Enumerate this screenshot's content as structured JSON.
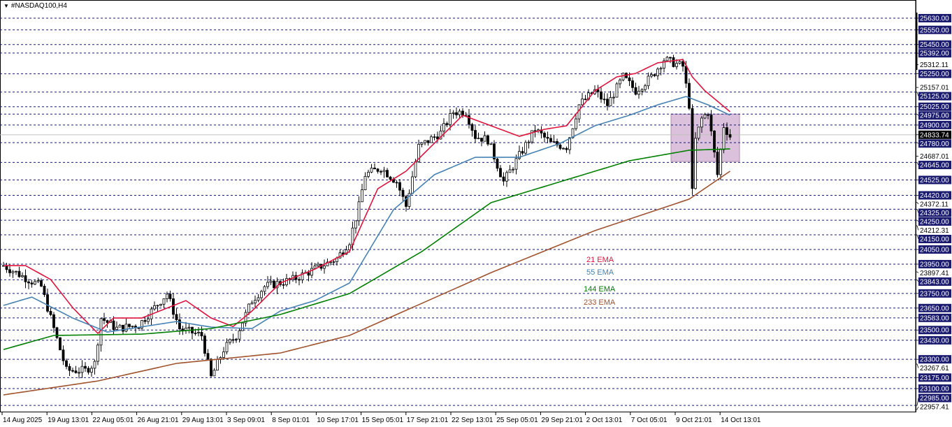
{
  "header": {
    "symbol_timeframe": "#NASDAQ100,H4",
    "menu_icon": "triangle-down-icon"
  },
  "chart_data": {
    "type": "candlestick",
    "title": "#NASDAQ100,H4",
    "ylim": [
      22957.41,
      25630
    ],
    "current_price": "24833.74",
    "price_levels": [
      "25630.00",
      "25550.00",
      "25450.00",
      "25392.00",
      "25250.00",
      "25125.00",
      "25025.00",
      "24975.00",
      "24900.00",
      "24780.00",
      "24645.00",
      "24525.00",
      "24420.00",
      "24325.00",
      "24250.00",
      "24150.00",
      "24050.00",
      "23950.00",
      "23843.00",
      "23750.00",
      "23650.00",
      "23583.00",
      "23500.00",
      "23430.00",
      "23300.00",
      "23175.00",
      "23100.00",
      "22985.00"
    ],
    "axis_labels": [
      "25312.11",
      "25157.01",
      "24687.01",
      "24372.11",
      "24212.31",
      "23897.41",
      "23267.61",
      "22957.41"
    ],
    "time_labels": [
      "14 Aug 2025",
      "19 Aug 13:01",
      "22 Aug 05:01",
      "26 Aug 21:01",
      "29 Aug 13:01",
      "3 Sep 09:01",
      "8 Sep 01:01",
      "10 Sep 17:01",
      "15 Sep 05:01",
      "17 Sep 21:01",
      "22 Sep 13:01",
      "25 Sep 05:01",
      "29 Sep 21:01",
      "2 Oct 13:01",
      "7 Oct 05:01",
      "9 Oct 21:01",
      "14 Oct 13:01"
    ],
    "price_path": [
      [
        0,
        23940
      ],
      [
        6,
        23868
      ],
      [
        12,
        23797
      ],
      [
        16,
        23510
      ],
      [
        20,
        23224
      ],
      [
        26,
        23224
      ],
      [
        29,
        23272
      ],
      [
        31,
        23582
      ],
      [
        36,
        23510
      ],
      [
        43,
        23534
      ],
      [
        52,
        23749
      ],
      [
        56,
        23510
      ],
      [
        63,
        23463
      ],
      [
        66,
        23176
      ],
      [
        70,
        23367
      ],
      [
        74,
        23463
      ],
      [
        79,
        23701
      ],
      [
        83,
        23797
      ],
      [
        92,
        23845
      ],
      [
        99,
        23916
      ],
      [
        106,
        23988
      ],
      [
        110,
        24107
      ],
      [
        113,
        24346
      ],
      [
        115,
        24561
      ],
      [
        120,
        24608
      ],
      [
        125,
        24513
      ],
      [
        128,
        24346
      ],
      [
        132,
        24752
      ],
      [
        139,
        24847
      ],
      [
        143,
        24990
      ],
      [
        147,
        24990
      ],
      [
        150,
        24823
      ],
      [
        154,
        24799
      ],
      [
        159,
        24513
      ],
      [
        163,
        24656
      ],
      [
        169,
        24871
      ],
      [
        174,
        24775
      ],
      [
        179,
        24752
      ],
      [
        183,
        25038
      ],
      [
        188,
        25134
      ],
      [
        192,
        25038
      ],
      [
        197,
        25229
      ],
      [
        201,
        25134
      ],
      [
        206,
        25229
      ],
      [
        210,
        25348
      ],
      [
        216,
        25301
      ],
      [
        218,
        25038
      ],
      [
        219,
        24441
      ],
      [
        220,
        24799
      ],
      [
        222,
        24943
      ],
      [
        224,
        24990
      ],
      [
        227,
        24561
      ],
      [
        229,
        24895
      ],
      [
        231,
        24823
      ]
    ],
    "series": [
      {
        "name": "21 EMA",
        "color": "#e0143c",
        "values": [
          [
            0,
            23940
          ],
          [
            7,
            23940
          ],
          [
            15,
            23845
          ],
          [
            22,
            23653
          ],
          [
            30,
            23477
          ],
          [
            35,
            23582
          ],
          [
            44,
            23582
          ],
          [
            58,
            23701
          ],
          [
            66,
            23582
          ],
          [
            73,
            23524
          ],
          [
            79,
            23630
          ],
          [
            88,
            23821
          ],
          [
            99,
            23916
          ],
          [
            110,
            24036
          ],
          [
            119,
            24465
          ],
          [
            128,
            24585
          ],
          [
            137,
            24776
          ],
          [
            146,
            24967
          ],
          [
            155,
            24895
          ],
          [
            164,
            24823
          ],
          [
            172,
            24871
          ],
          [
            179,
            24895
          ],
          [
            188,
            25134
          ],
          [
            195,
            25229
          ],
          [
            201,
            25253
          ],
          [
            208,
            25325
          ],
          [
            216,
            25348
          ],
          [
            219,
            25229
          ],
          [
            223,
            25134
          ],
          [
            231,
            24991
          ]
        ]
      },
      {
        "name": "55 EMA",
        "color": "#4682b4",
        "values": [
          [
            0,
            23668
          ],
          [
            9,
            23725
          ],
          [
            22,
            23582
          ],
          [
            33,
            23486
          ],
          [
            55,
            23558
          ],
          [
            66,
            23520
          ],
          [
            79,
            23510
          ],
          [
            88,
            23630
          ],
          [
            99,
            23701
          ],
          [
            110,
            23821
          ],
          [
            124,
            24322
          ],
          [
            137,
            24561
          ],
          [
            150,
            24680
          ],
          [
            164,
            24680
          ],
          [
            177,
            24775
          ],
          [
            188,
            24895
          ],
          [
            199,
            24967
          ],
          [
            208,
            25038
          ],
          [
            217,
            25095
          ],
          [
            224,
            25038
          ],
          [
            231,
            24967
          ]
        ]
      },
      {
        "name": "144 EMA",
        "color": "#008000",
        "values": [
          [
            0,
            23367
          ],
          [
            16,
            23463
          ],
          [
            44,
            23472
          ],
          [
            66,
            23510
          ],
          [
            88,
            23606
          ],
          [
            110,
            23749
          ],
          [
            133,
            24036
          ],
          [
            155,
            24370
          ],
          [
            177,
            24513
          ],
          [
            199,
            24656
          ],
          [
            218,
            24728
          ],
          [
            231,
            24737
          ]
        ]
      },
      {
        "name": "233 EMA",
        "color": "#a0522d",
        "values": [
          [
            0,
            23057
          ],
          [
            30,
            23152
          ],
          [
            55,
            23272
          ],
          [
            88,
            23343
          ],
          [
            110,
            23463
          ],
          [
            155,
            23892
          ],
          [
            188,
            24179
          ],
          [
            218,
            24394
          ],
          [
            231,
            24585
          ]
        ]
      }
    ],
    "highlight_zone": {
      "price_range": [
        24651,
        24975
      ],
      "color": "#c8a0c8"
    }
  }
}
